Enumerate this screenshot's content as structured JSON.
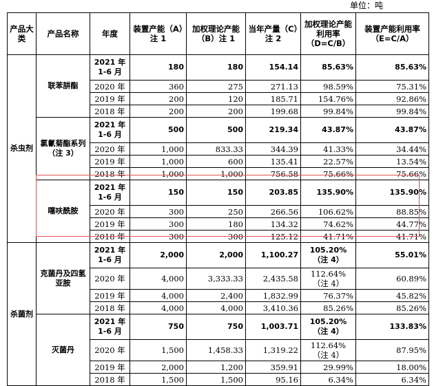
{
  "unit_label": "单位：吨",
  "headers": {
    "category": "产品大类",
    "product": "产品名称",
    "year": "年度",
    "capacity_a": "装置产能（A）注 1",
    "weighted_b": "加权理论产能（B）注 1",
    "output_c": "当年产量（C）注 2",
    "weighted_rate_d": "加权理论产能利用率（D=C/B）",
    "capacity_rate_e": "装置产能利用率（E=C/A）"
  },
  "categories": {
    "insecticide": "杀虫剂",
    "fungicide": "杀菌剂"
  },
  "products": {
    "p1": "联苯肼酯",
    "p2": "氯氰菊酯系列（注 3）",
    "p3": "噻呋酰胺",
    "p4": "克菌丹及四氢亚胺",
    "p5": "灭菌丹"
  },
  "rows": [
    [
      "2021 年 1-6 月",
      "180",
      "180",
      "154.14",
      "85.63%",
      "",
      "85.63%"
    ],
    [
      "2020 年",
      "360",
      "275",
      "271.13",
      "98.59%",
      "",
      "75.31%"
    ],
    [
      "2019 年",
      "200",
      "120",
      "185.71",
      "154.76%",
      "",
      "92.86%"
    ],
    [
      "2018 年",
      "200",
      "200",
      "199.68",
      "99.84%",
      "",
      "99.84%"
    ],
    [
      "2021 年 1-6 月",
      "500",
      "500",
      "219.34",
      "43.87%",
      "",
      "43.87%"
    ],
    [
      "2020 年",
      "1,000",
      "833.33",
      "344.39",
      "41.33%",
      "",
      "34.44%"
    ],
    [
      "2019 年",
      "1,000",
      "600",
      "135.41",
      "22.57%",
      "",
      "13.54%"
    ],
    [
      "2018 年",
      "1,000",
      "1,000",
      "756.58",
      "75.66%",
      "",
      "75.66%"
    ],
    [
      "2021 年 1-6 月",
      "150",
      "150",
      "203.85",
      "135.90%",
      "",
      "135.90%"
    ],
    [
      "2020 年",
      "300",
      "250",
      "266.56",
      "106.62%",
      "",
      "88.85%"
    ],
    [
      "2019 年",
      "300",
      "180",
      "134.32",
      "74.62%",
      "",
      "44.77%"
    ],
    [
      "2018 年",
      "300",
      "300",
      "125.12",
      "41.71%",
      "",
      "41.71%"
    ],
    [
      "2021 年 1-6 月",
      "2,000",
      "2,000",
      "1,100.27",
      "105.20%",
      "（注 4）",
      "55.01%"
    ],
    [
      "2020 年",
      "4,000",
      "3,333.33",
      "2,435.58",
      "112.64%",
      "（注 4）",
      "60.89%"
    ],
    [
      "2019 年",
      "4,000",
      "2,400",
      "1,832.99",
      "76.37%",
      "",
      "45.82%"
    ],
    [
      "2018 年",
      "4,000",
      "4,000",
      "3,410.36",
      "85.26%",
      "",
      "85.26%"
    ],
    [
      "2021 年 1-6 月",
      "750",
      "750",
      "1,003.71",
      "105.20%",
      "（注 4）",
      "133.83%"
    ],
    [
      "2020 年",
      "1,500",
      "1,458.33",
      "1,319.22",
      "112.64%",
      "（注 4）",
      "87.95%"
    ],
    [
      "2019 年",
      "2,000",
      "1,200",
      "359.91",
      "29.99%",
      "",
      "18.00%"
    ],
    [
      "2018 年",
      "1,500",
      "1,500",
      "95.16",
      "6.34%",
      "",
      "6.34%"
    ]
  ]
}
